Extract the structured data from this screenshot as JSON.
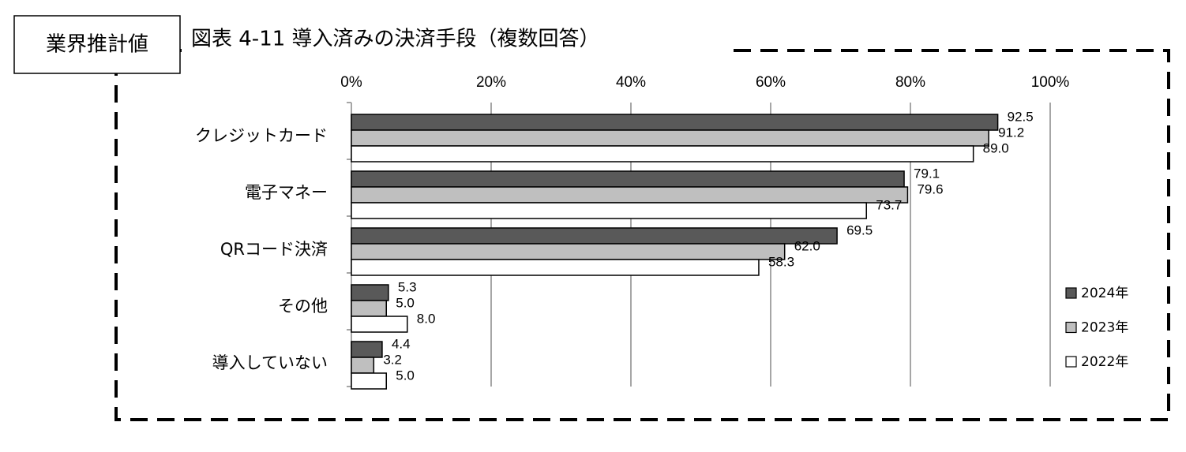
{
  "badge": "業界推計値",
  "chart_data": {
    "type": "hbar",
    "title": "図表 4-11 導入済みの決済手段（複数回答）",
    "categories": [
      "クレジットカード",
      "電子マネー",
      "QRコード決済",
      "その他",
      "導入していない"
    ],
    "series": [
      {
        "name": "2024年",
        "color": "#595959",
        "values": [
          92.5,
          79.1,
          69.5,
          5.3,
          4.4
        ],
        "value_labels": [
          "92.5",
          "79.1",
          "69.5",
          "5.3",
          "4.4"
        ]
      },
      {
        "name": "2023年",
        "color": "#bfbfbf",
        "values": [
          91.2,
          79.6,
          62.0,
          5.0,
          3.2
        ],
        "value_labels": [
          "91.2",
          "79.6",
          "62.0",
          "5.0",
          "3.2"
        ]
      },
      {
        "name": "2022年",
        "color": "#ffffff",
        "values": [
          89.0,
          73.7,
          58.3,
          8.0,
          5.0
        ],
        "value_labels": [
          "89.0",
          "73.7",
          "58.3",
          "8.0",
          "5.0"
        ]
      }
    ],
    "xlim": [
      0,
      100
    ],
    "xticks": [
      {
        "value": 0,
        "label": "0%"
      },
      {
        "value": 20,
        "label": "20%"
      },
      {
        "value": 40,
        "label": "40%"
      },
      {
        "value": 60,
        "label": "60%"
      },
      {
        "value": 80,
        "label": "80%"
      },
      {
        "value": 100,
        "label": "100%"
      }
    ],
    "grid": true,
    "legend": "right"
  }
}
